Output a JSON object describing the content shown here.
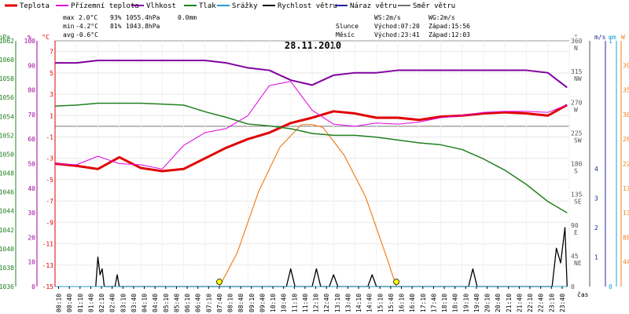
{
  "legend": [
    {
      "label": "Teplota",
      "color": "#e00000"
    },
    {
      "label": "Přízemní teplota",
      "color": "#e000e0"
    },
    {
      "label": "Vlhkost",
      "color": "#8000a0"
    },
    {
      "label": "Tlak",
      "color": "#208020"
    },
    {
      "label": "Srážky",
      "color": "#20a0d0"
    },
    {
      "label": "Rychlost větru",
      "color": "#000000"
    },
    {
      "label": "Náraz větru",
      "color": "#2020a0"
    },
    {
      "label": "Směr větru",
      "color": "#707070"
    }
  ],
  "stats": {
    "max_label": "max",
    "max_temp": "2.0°C",
    "max_hum": "93%",
    "max_press": "1055.4hPa",
    "max_rain": "0.0mm",
    "min_label": "min",
    "min_temp": "-4.2°C",
    "min_hum": "81%",
    "min_press": "1043.8hPa",
    "avg_label": "avg",
    "avg_temp": "-0.6°C"
  },
  "wind_info": {
    "ws": "WS:2m/s",
    "wg": "WG:2m/s"
  },
  "sun_info": {
    "label": "Slunce",
    "rise": "Východ:07:20",
    "set": "Západ:15:56"
  },
  "moon_info": {
    "label": "Měsíc",
    "rise": "Východ:23:41",
    "set": "Západ:12:03"
  },
  "colors": {
    "temp": "#e00000",
    "ground": "#e000e0",
    "hum": "#8000a0",
    "press": "#208020",
    "rain": "#20a0d0",
    "wind": "#000000",
    "gust": "#2020a0",
    "dir": "#707070",
    "sun": "#f08020"
  },
  "chart_data": {
    "type": "line",
    "title": "28.11.2010",
    "xlabel": "čas",
    "x_ticks": [
      "00:10",
      "00:40",
      "01:10",
      "01:40",
      "02:10",
      "02:40",
      "03:10",
      "03:40",
      "04:10",
      "04:40",
      "05:10",
      "05:40",
      "06:10",
      "06:40",
      "07:10",
      "07:40",
      "08:10",
      "08:40",
      "09:10",
      "09:40",
      "10:10",
      "10:40",
      "11:10",
      "11:40",
      "12:10",
      "12:40",
      "13:10",
      "13:40",
      "14:10",
      "14:40",
      "15:10",
      "15:40",
      "16:10",
      "16:40",
      "17:10",
      "17:40",
      "18:10",
      "18:40",
      "19:10",
      "19:40",
      "20:10",
      "20:40",
      "21:10",
      "21:40",
      "22:10",
      "22:40",
      "23:10",
      "23:40"
    ],
    "axes": {
      "pressure": {
        "label": "hPa",
        "ticks": [
          "1062",
          "1060",
          "1058",
          "1056",
          "1054",
          "1052",
          "1050",
          "1048",
          "1046",
          "1044",
          "1042",
          "1040",
          "1038",
          "1036"
        ],
        "range": [
          1036,
          1062
        ]
      },
      "humidity": {
        "label": "%",
        "ticks": [
          "100",
          "90",
          "80",
          "70",
          "60",
          "50",
          "40",
          "30",
          "20",
          "10",
          "0"
        ],
        "range": [
          0,
          100
        ]
      },
      "temperature": {
        "label": "°C",
        "ticks": [
          "7",
          "5",
          "3",
          "1",
          "-1",
          "-3",
          "-5",
          "-7",
          "-9",
          "-11",
          "-13",
          "-15"
        ],
        "range": [
          -15,
          8
        ]
      },
      "direction": {
        "label": "°",
        "ticks": [
          "360 N",
          "315 NW",
          "270 W",
          "225 SW",
          "180 S",
          "135 SE",
          "90 E",
          "45 NE",
          "0"
        ],
        "range": [
          0,
          360
        ]
      },
      "wind": {
        "label": "m/s",
        "ticks": [
          "4",
          "3",
          "2",
          "1"
        ],
        "range": [
          0,
          4
        ]
      },
      "rain": {
        "label": "mm",
        "ticks": [
          "1",
          "0"
        ],
        "range": [
          0,
          1
        ]
      },
      "sun": {
        "label": "W",
        "ticks": [
          "396",
          "352",
          "308",
          "264",
          "220",
          "176",
          "132",
          "88",
          "44"
        ],
        "range": [
          0,
          440
        ]
      }
    },
    "series": [
      {
        "name": "Teplota",
        "x": [
          0,
          1,
          2,
          3,
          4,
          5,
          6,
          7,
          8,
          9,
          10,
          11,
          12,
          13,
          14,
          15,
          16,
          17,
          18,
          19,
          20,
          21,
          22,
          23,
          23.9
        ],
        "y": [
          -3.5,
          -3.7,
          -4.0,
          -2.9,
          -3.9,
          -4.2,
          -4.0,
          -3.0,
          -2.0,
          -1.2,
          -0.6,
          0.3,
          0.8,
          1.4,
          1.2,
          0.8,
          0.8,
          0.6,
          0.9,
          1.0,
          1.2,
          1.3,
          1.2,
          1.0,
          2.0
        ]
      },
      {
        "name": "Přízemní teplota",
        "x": [
          0,
          1,
          2,
          3,
          4,
          5,
          6,
          7,
          8,
          9,
          10,
          11,
          12,
          13,
          14,
          15,
          16,
          17,
          18,
          19,
          20,
          21,
          22,
          23,
          23.9
        ],
        "y": [
          -3.5,
          -3.6,
          -2.8,
          -3.5,
          -3.6,
          -4.0,
          -1.8,
          -0.6,
          -0.2,
          1.0,
          3.8,
          4.2,
          1.5,
          0.2,
          0.0,
          0.3,
          0.2,
          0.4,
          0.8,
          1.0,
          1.3,
          1.4,
          1.4,
          1.3,
          2.0
        ]
      },
      {
        "name": "Vlhkost",
        "x": [
          0,
          1,
          2,
          3,
          4,
          5,
          6,
          7,
          8,
          9,
          10,
          11,
          12,
          13,
          14,
          15,
          16,
          17,
          18,
          19,
          20,
          21,
          22,
          23,
          23.9
        ],
        "y": [
          91,
          91,
          92,
          92,
          92,
          92,
          92,
          92,
          91,
          89,
          88,
          84,
          82,
          86,
          87,
          87,
          88,
          88,
          88,
          88,
          88,
          88,
          88,
          87,
          81
        ]
      },
      {
        "name": "Tlak",
        "x": [
          0,
          1,
          2,
          3,
          4,
          5,
          6,
          7,
          8,
          9,
          10,
          11,
          12,
          13,
          14,
          15,
          16,
          17,
          18,
          19,
          20,
          21,
          22,
          23,
          23.9
        ],
        "y": [
          1055.1,
          1055.2,
          1055.4,
          1055.4,
          1055.4,
          1055.3,
          1055.2,
          1054.5,
          1053.9,
          1053.2,
          1053.0,
          1052.7,
          1052.2,
          1052.0,
          1052.0,
          1051.8,
          1051.5,
          1051.2,
          1051.0,
          1050.5,
          1049.5,
          1048.3,
          1046.8,
          1045.0,
          1043.8
        ]
      },
      {
        "name": "Rychlost větru",
        "x": [
          1.9,
          2.0,
          2.1,
          2.2,
          2.3,
          2.8,
          2.9,
          3.0,
          10.8,
          11.0,
          11.2,
          12.0,
          12.2,
          12.4,
          12.8,
          13.0,
          13.2,
          14.6,
          14.8,
          15.0,
          19.3,
          19.5,
          19.7,
          23.2,
          23.4,
          23.6,
          23.8,
          23.9
        ],
        "y": [
          0,
          1.0,
          0.4,
          0.6,
          0,
          0,
          0.4,
          0,
          0,
          0.6,
          0,
          0,
          0.6,
          0,
          0,
          0.4,
          0,
          0,
          0.4,
          0,
          0,
          0.6,
          0,
          0,
          1.3,
          0.8,
          2.0,
          0
        ]
      },
      {
        "name": "Srážky",
        "x": [
          0,
          23.9
        ],
        "y": [
          0,
          0
        ]
      }
    ],
    "sun_radiation": {
      "x": [
        7.67,
        8.5,
        9.5,
        10.5,
        11.5,
        12.0,
        12.5,
        13.5,
        14.5,
        15.5,
        15.93
      ],
      "y": [
        0,
        60,
        170,
        250,
        290,
        290,
        285,
        235,
        160,
        50,
        0
      ]
    }
  }
}
